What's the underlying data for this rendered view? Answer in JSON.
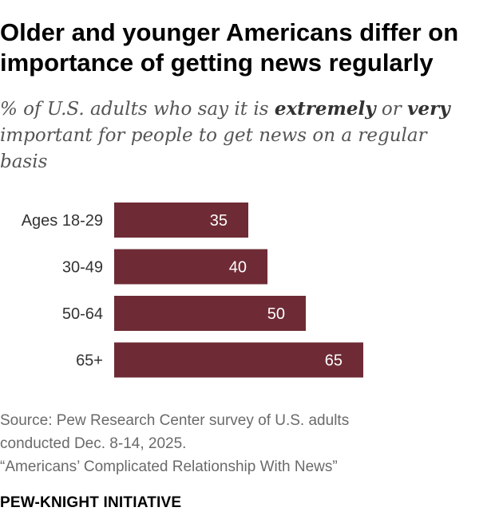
{
  "title": "Older and younger Americans differ on importance of getting news regularly",
  "subtitle": {
    "part1": "% of U.S. adults who say it is ",
    "emph1": "extremely",
    "part2": " or ",
    "emph2": "very",
    "part3": " important for people to get news on a regular basis"
  },
  "chart_data": {
    "type": "bar",
    "orientation": "horizontal",
    "categories": [
      "Ages 18-29",
      "30-49",
      "50-64",
      "65+"
    ],
    "values": [
      35,
      40,
      50,
      65
    ],
    "xlim": [
      0,
      100
    ],
    "grid": false,
    "bar_color": "#6e2b35",
    "label_color": "#ffffff"
  },
  "notes": {
    "source_line1": "Source: Pew Research Center survey of U.S. adults",
    "source_line2": "conducted Dec. 8-14, 2025.",
    "report": "“Americans’ Complicated Relationship With News”"
  },
  "org": "PEW-KNIGHT INITIATIVE"
}
